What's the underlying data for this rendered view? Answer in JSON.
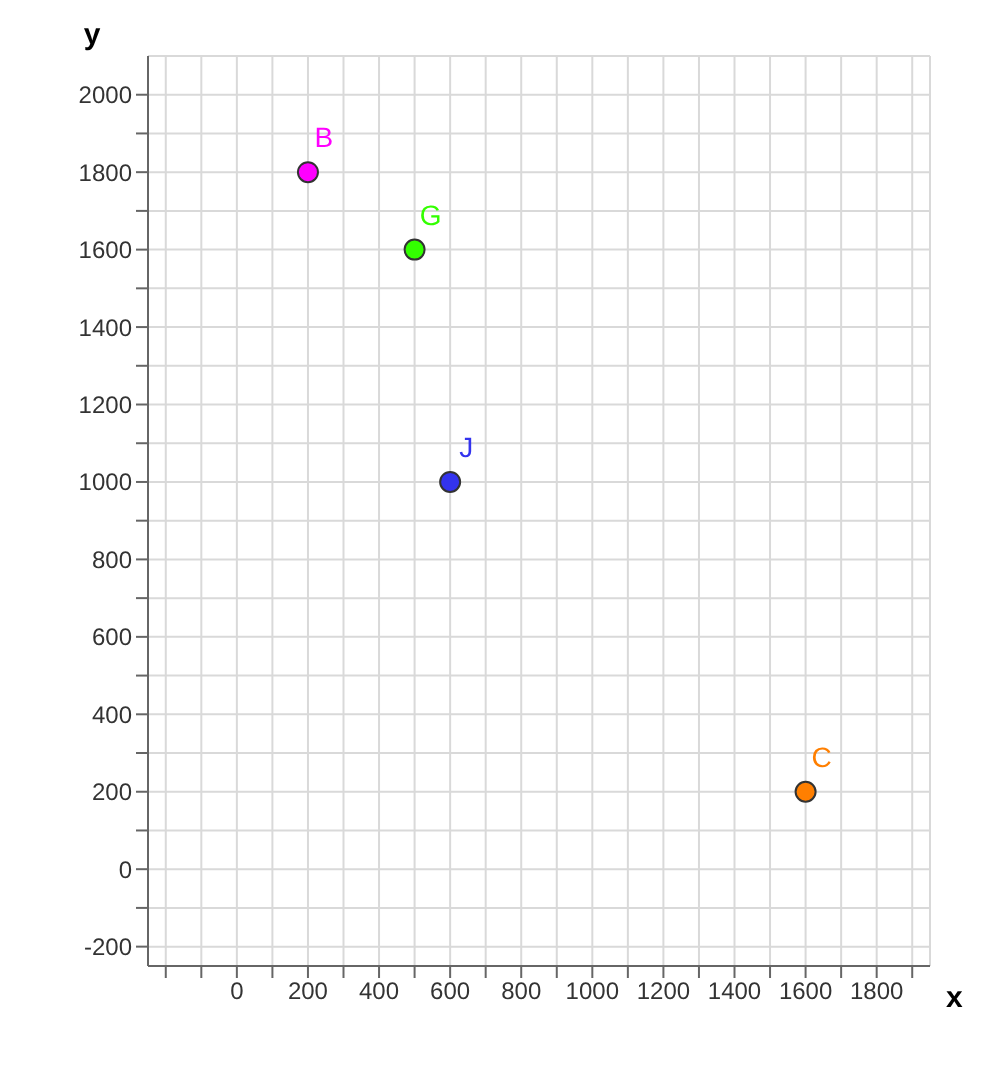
{
  "chart_data": {
    "type": "scatter",
    "xlabel": "x",
    "ylabel": "y",
    "series": [
      {
        "name": "B",
        "color": "#ff00ff",
        "x": [
          200
        ],
        "values": [
          1800
        ]
      },
      {
        "name": "G",
        "color": "#33ff00",
        "x": [
          500
        ],
        "values": [
          1600
        ]
      },
      {
        "name": "J",
        "color": "#3333ee",
        "x": [
          600
        ],
        "values": [
          1000
        ]
      },
      {
        "name": "C",
        "color": "#ff7f00",
        "x": [
          1600
        ],
        "values": [
          200
        ]
      }
    ],
    "xlim": [
      -250,
      1950
    ],
    "ylim": [
      -250,
      2100
    ],
    "xticks": [
      {
        "value": -200,
        "label": null
      },
      {
        "value": -100,
        "label": null
      },
      0,
      {
        "value": 100,
        "label": null
      },
      200,
      {
        "value": 300,
        "label": null
      },
      400,
      {
        "value": 500,
        "label": null
      },
      600,
      {
        "value": 700,
        "label": null
      },
      800,
      {
        "value": 900,
        "label": null
      },
      1000,
      {
        "value": 1100,
        "label": null
      },
      1200,
      {
        "value": 1300,
        "label": null
      },
      1400,
      {
        "value": 1500,
        "label": null
      },
      1600,
      {
        "value": 1700,
        "label": null
      },
      1800,
      {
        "value": 1900,
        "label": null
      }
    ],
    "yticks": [
      -200,
      {
        "value": -100,
        "label": null
      },
      0,
      {
        "value": 100,
        "label": null
      },
      200,
      {
        "value": 300,
        "label": null
      },
      400,
      {
        "value": 500,
        "label": null
      },
      600,
      {
        "value": 700,
        "label": null
      },
      800,
      {
        "value": 900,
        "label": null
      },
      1000,
      {
        "value": 1100,
        "label": null
      },
      1200,
      {
        "value": 1300,
        "label": null
      },
      1400,
      {
        "value": 1500,
        "label": null
      },
      1600,
      {
        "value": 1700,
        "label": null
      },
      1800,
      {
        "value": 1900,
        "label": null
      },
      2000
    ],
    "grid": true,
    "marker": "circle",
    "legend": false
  }
}
